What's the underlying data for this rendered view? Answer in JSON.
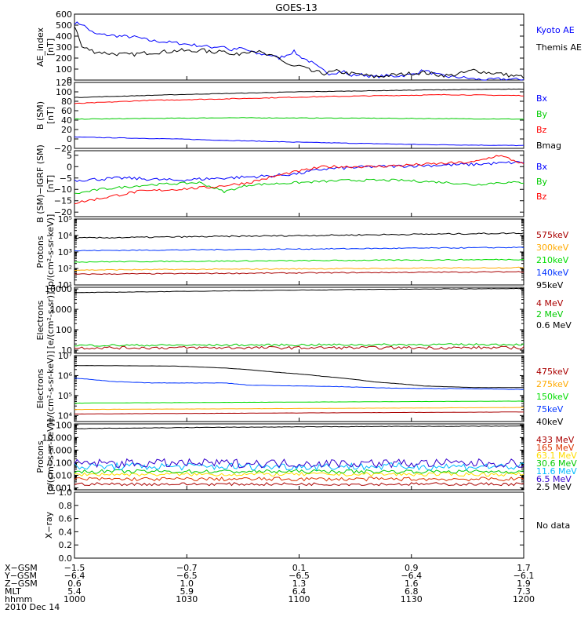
{
  "title": "GOES-13",
  "chart_data": [
    {
      "id": "ae",
      "type": "line",
      "ylabel": [
        "AE_index",
        "[nT]"
      ],
      "ylim": [
        0,
        600
      ],
      "yscale": "linear",
      "ticks": [
        0,
        100,
        200,
        300,
        400,
        500,
        600
      ],
      "tick_labels": [
        "0",
        "100",
        "200",
        "300",
        "400",
        "500",
        "600"
      ],
      "series": [
        {
          "name": "Kyoto AE",
          "color": "#0000ff",
          "kind": "trend",
          "points": [
            [
              0,
              520
            ],
            [
              3,
              510
            ],
            [
              8,
              420
            ],
            [
              18,
              400
            ],
            [
              25,
              390
            ],
            [
              30,
              360
            ],
            [
              40,
              340
            ],
            [
              55,
              300
            ],
            [
              60,
              310
            ],
            [
              62,
              270
            ],
            [
              67,
              290
            ],
            [
              73,
              240
            ],
            [
              78,
              230
            ],
            [
              82,
              200
            ],
            [
              88,
              260
            ],
            [
              90,
              220
            ],
            [
              95,
              160
            ],
            [
              98,
              110
            ],
            [
              102,
              60
            ],
            [
              108,
              80
            ],
            [
              110,
              40
            ],
            [
              115,
              50
            ],
            [
              120,
              30
            ],
            [
              125,
              40
            ],
            [
              128,
              35
            ],
            [
              135,
              50
            ],
            [
              140,
              90
            ],
            [
              145,
              50
            ],
            [
              150,
              30
            ],
            [
              155,
              25
            ],
            [
              160,
              10
            ],
            [
              165,
              0
            ],
            [
              170,
              10
            ],
            [
              180,
              5
            ]
          ],
          "noise": 14
        },
        {
          "name": "Themis AE",
          "color": "#000000",
          "kind": "trend",
          "points": [
            [
              0,
              500
            ],
            [
              3,
              300
            ],
            [
              8,
              260
            ],
            [
              15,
              240
            ],
            [
              22,
              230
            ],
            [
              30,
              250
            ],
            [
              38,
              260
            ],
            [
              42,
              270
            ],
            [
              48,
              260
            ],
            [
              50,
              280
            ],
            [
              55,
              250
            ],
            [
              60,
              280
            ],
            [
              62,
              230
            ],
            [
              65,
              230
            ],
            [
              68,
              260
            ],
            [
              72,
              270
            ],
            [
              78,
              220
            ],
            [
              82,
              200
            ],
            [
              85,
              150
            ],
            [
              88,
              120
            ],
            [
              90,
              130
            ],
            [
              95,
              80
            ],
            [
              100,
              60
            ],
            [
              105,
              80
            ],
            [
              110,
              60
            ],
            [
              115,
              50
            ],
            [
              120,
              30
            ],
            [
              125,
              40
            ],
            [
              130,
              50
            ],
            [
              135,
              60
            ],
            [
              140,
              70
            ],
            [
              145,
              50
            ],
            [
              150,
              40
            ],
            [
              155,
              60
            ],
            [
              160,
              90
            ],
            [
              165,
              70
            ],
            [
              170,
              60
            ],
            [
              175,
              40
            ],
            [
              180,
              30
            ]
          ],
          "noise": 18
        }
      ]
    },
    {
      "id": "bsm",
      "type": "line",
      "ylabel": [
        "B (SM)",
        "[nT]"
      ],
      "ylim": [
        -20,
        120
      ],
      "yscale": "linear",
      "ticks": [
        -20,
        0,
        20,
        40,
        60,
        80,
        100,
        120
      ],
      "tick_labels": [
        "−20",
        "0",
        "20",
        "40",
        "60",
        "80",
        "100",
        "120"
      ],
      "series": [
        {
          "name": "Bx",
          "color": "#0000ff",
          "kind": "trend",
          "points": [
            [
              0,
              4
            ],
            [
              40,
              0
            ],
            [
              90,
              -7
            ],
            [
              140,
              -12
            ],
            [
              180,
              -14
            ]
          ],
          "noise": 0.6
        },
        {
          "name": "By",
          "color": "#00cc00",
          "kind": "trend",
          "points": [
            [
              0,
              42
            ],
            [
              60,
              45
            ],
            [
              120,
              44
            ],
            [
              180,
              42
            ]
          ],
          "noise": 0.6
        },
        {
          "name": "Bz",
          "color": "#ff0000",
          "kind": "trend",
          "points": [
            [
              0,
              75
            ],
            [
              30,
              82
            ],
            [
              60,
              85
            ],
            [
              100,
              90
            ],
            [
              150,
              94
            ],
            [
              180,
              92
            ]
          ],
          "noise": 0.8
        },
        {
          "name": "Bmag",
          "color": "#000000",
          "kind": "trend",
          "points": [
            [
              0,
              88
            ],
            [
              40,
              94
            ],
            [
              90,
              100
            ],
            [
              140,
              104
            ],
            [
              180,
              106
            ]
          ],
          "noise": 0.5
        }
      ]
    },
    {
      "id": "bigrf",
      "type": "line",
      "ylabel": [
        "B (SM)−IGRF (SM)",
        "[nT]"
      ],
      "ylim": [
        -22,
        7
      ],
      "yscale": "linear",
      "ticks": [
        -20,
        -15,
        -10,
        -5,
        0,
        5
      ],
      "tick_labels": [
        "−20",
        "−15",
        "−10",
        "−5",
        "0",
        "5"
      ],
      "series": [
        {
          "name": "Bx",
          "color": "#0000ff",
          "kind": "trend",
          "points": [
            [
              0,
              -6
            ],
            [
              20,
              -5
            ],
            [
              40,
              -6
            ],
            [
              60,
              -5
            ],
            [
              80,
              -4
            ],
            [
              90,
              -3
            ],
            [
              100,
              -1
            ],
            [
              120,
              0
            ],
            [
              140,
              0.5
            ],
            [
              160,
              1
            ],
            [
              170,
              1.5
            ],
            [
              180,
              2
            ]
          ],
          "noise": 0.7
        },
        {
          "name": "By",
          "color": "#00cc00",
          "kind": "trend",
          "points": [
            [
              0,
              -12
            ],
            [
              10,
              -10
            ],
            [
              30,
              -8
            ],
            [
              50,
              -7
            ],
            [
              55,
              -9
            ],
            [
              60,
              -11
            ],
            [
              70,
              -8
            ],
            [
              90,
              -7
            ],
            [
              110,
              -6
            ],
            [
              130,
              -6
            ],
            [
              150,
              -7
            ],
            [
              160,
              -8
            ],
            [
              170,
              -7
            ],
            [
              180,
              -7
            ]
          ],
          "noise": 0.5
        },
        {
          "name": "Bz",
          "color": "#ff0000",
          "kind": "trend",
          "points": [
            [
              0,
              -16
            ],
            [
              10,
              -14
            ],
            [
              25,
              -11
            ],
            [
              40,
              -10
            ],
            [
              55,
              -9
            ],
            [
              70,
              -7
            ],
            [
              85,
              -3
            ],
            [
              100,
              0
            ],
            [
              120,
              0
            ],
            [
              140,
              1
            ],
            [
              160,
              2
            ],
            [
              170,
              5
            ],
            [
              178,
              2
            ],
            [
              180,
              1
            ]
          ],
          "noise": 0.6
        }
      ]
    },
    {
      "id": "protons_low",
      "type": "line",
      "ylabel": [
        "Protons",
        "[p/(cm²-s-sr-keV)]"
      ],
      "ylim": [
        10,
        100000
      ],
      "yscale": "log",
      "ticks": [
        10,
        100,
        1000,
        10000,
        100000
      ],
      "tick_labels": [
        "10¹",
        "10²",
        "10³",
        "10⁴",
        "10⁵"
      ],
      "series": [
        {
          "name": "575keV",
          "color": "#aa0000",
          "kind": "const",
          "value": 45,
          "slope": 0.15,
          "noise": 0.03
        },
        {
          "name": "300keV",
          "color": "#ffaa00",
          "kind": "const",
          "value": 80,
          "slope": 0.15,
          "noise": 0.03
        },
        {
          "name": "210keV",
          "color": "#00dd00",
          "kind": "const",
          "value": 250,
          "slope": 0.15,
          "noise": 0.03
        },
        {
          "name": "140keV",
          "color": "#0033ff",
          "kind": "const",
          "value": 1200,
          "slope": 0.2,
          "noise": 0.03
        },
        {
          "name": "95keV",
          "color": "#000000",
          "kind": "const",
          "value": 7000,
          "slope": 0.3,
          "noise": 0.04
        }
      ]
    },
    {
      "id": "electrons_high",
      "type": "line",
      "ylabel": [
        "Electrons",
        "[e/(cm²-s-sr)]"
      ],
      "ylim": [
        7,
        12000
      ],
      "yscale": "log",
      "ticks": [
        10,
        100,
        1000,
        10000
      ],
      "tick_labels": [
        "10",
        "100",
        "1000",
        "10000"
      ],
      "series": [
        {
          "name": "4 MeV",
          "color": "#aa0000",
          "kind": "const",
          "value": 13,
          "slope": 0,
          "noise": 0.07
        },
        {
          "name": "2 MeV",
          "color": "#00cc00",
          "kind": "const",
          "value": 17,
          "slope": 0.05,
          "noise": 0.05
        },
        {
          "name": "0.6 MeV",
          "color": "#000000",
          "kind": "trend",
          "points": [
            [
              0,
              6500
            ],
            [
              60,
              8000
            ],
            [
              120,
              9500
            ],
            [
              180,
              10500
            ]
          ],
          "noise": 0.01,
          "log": true
        }
      ]
    },
    {
      "id": "electrons_low",
      "type": "line",
      "ylabel": [
        "Electrons",
        "[e/(cm²-s-sr-keV)]"
      ],
      "ylim": [
        5000,
        10000000
      ],
      "yscale": "log",
      "ticks": [
        10000,
        100000,
        1000000,
        10000000
      ],
      "tick_labels": [
        "10⁴",
        "10⁵",
        "10⁶",
        "10⁷"
      ],
      "series": [
        {
          "name": "475keV",
          "color": "#aa0000",
          "kind": "const",
          "value": 12000,
          "slope": 0.1,
          "noise": 0.005
        },
        {
          "name": "275keV",
          "color": "#ffaa00",
          "kind": "const",
          "value": 20000,
          "slope": 0.1,
          "noise": 0.005
        },
        {
          "name": "150keV",
          "color": "#00dd00",
          "kind": "const",
          "value": 42000,
          "slope": 0.1,
          "noise": 0.005
        },
        {
          "name": "75keV",
          "color": "#0033ff",
          "kind": "trend",
          "points": [
            [
              0,
              750000
            ],
            [
              15,
              500000
            ],
            [
              30,
              430000
            ],
            [
              60,
              430000
            ],
            [
              70,
              330000
            ],
            [
              100,
              290000
            ],
            [
              130,
              230000
            ],
            [
              160,
              220000
            ],
            [
              180,
              200000
            ]
          ],
          "noise": 0.01,
          "log": true
        },
        {
          "name": "40keV",
          "color": "#000000",
          "kind": "trend",
          "points": [
            [
              0,
              3200000
            ],
            [
              40,
              3000000
            ],
            [
              60,
              2400000
            ],
            [
              80,
              1500000
            ],
            [
              100,
              900000
            ],
            [
              120,
              480000
            ],
            [
              140,
              300000
            ],
            [
              160,
              250000
            ],
            [
              180,
              250000
            ]
          ],
          "noise": 0.005,
          "log": true
        }
      ]
    },
    {
      "id": "protons_high",
      "type": "line",
      "ylabel": [
        "Protons",
        "[p/(cm²-s-sr-keV)]"
      ],
      "ylim": [
        0.0007,
        120
      ],
      "yscale": "log",
      "ticks": [
        0.001,
        0.01,
        0.1,
        1,
        10,
        100
      ],
      "tick_labels": [
        "0.001",
        "0.010",
        "0.100",
        "1.000",
        "10.000",
        "100"
      ],
      "series": [
        {
          "name": "433 MeV",
          "color": "#aa0000",
          "kind": "const",
          "value": 0.002,
          "slope": 0,
          "noise": 0.12
        },
        {
          "name": "165 MeV",
          "color": "#dd3300",
          "kind": "const",
          "value": 0.005,
          "slope": 0,
          "noise": 0.15
        },
        {
          "name": "63.1 MeV",
          "color": "#ffdd00",
          "kind": "const",
          "value": 0.012,
          "slope": 0,
          "noise": 0.15
        },
        {
          "name": "30.6 MeV",
          "color": "#00cc00",
          "kind": "const",
          "value": 0.02,
          "slope": 0,
          "noise": 0.15
        },
        {
          "name": "11.6 MeV",
          "color": "#00bbff",
          "kind": "const",
          "value": 0.05,
          "slope": 0,
          "noise": 0.3
        },
        {
          "name": "6.5 MeV",
          "color": "#3300cc",
          "kind": "const",
          "value": 0.09,
          "slope": 0,
          "noise": 0.35
        },
        {
          "name": "2.5 MeV",
          "color": "#000000",
          "kind": "trend",
          "points": [
            [
              0,
              50
            ],
            [
              60,
              65
            ],
            [
              120,
              75
            ],
            [
              180,
              80
            ]
          ],
          "noise": 0.02,
          "log": true
        }
      ]
    },
    {
      "id": "xray",
      "type": "line",
      "ylabel": [
        "X−ray"
      ],
      "ylim": [
        0,
        1
      ],
      "yscale": "linear",
      "ticks": [
        0,
        0.2,
        0.4,
        0.6,
        0.8,
        1.0
      ],
      "tick_labels": [
        "0.0",
        "0.2",
        "0.4",
        "0.6",
        "0.8",
        "1.0"
      ],
      "series": [],
      "note": "No data"
    }
  ],
  "x_axis": {
    "ticks_min": [
      0,
      30,
      60,
      90,
      120
    ],
    "rows": [
      {
        "label": "X−GSM",
        "values": [
          "−1.5",
          "−0.7",
          "0.1",
          "0.9",
          "1.7"
        ]
      },
      {
        "label": "Y−GSM",
        "values": [
          "−6.4",
          "−6.5",
          "−6.5",
          "−6.4",
          "−6.1"
        ]
      },
      {
        "label": "Z−GSM",
        "values": [
          "0.6",
          "1.0",
          "1.3",
          "1.6",
          "1.9"
        ]
      },
      {
        "label": "MLT",
        "values": [
          "5.4",
          "5.9",
          "6.4",
          "6.8",
          "7.3"
        ]
      },
      {
        "label": "hhmm",
        "values": [
          "1000",
          "1030",
          "1100",
          "1130",
          "1200"
        ]
      }
    ],
    "date": "2010 Dec 14"
  }
}
